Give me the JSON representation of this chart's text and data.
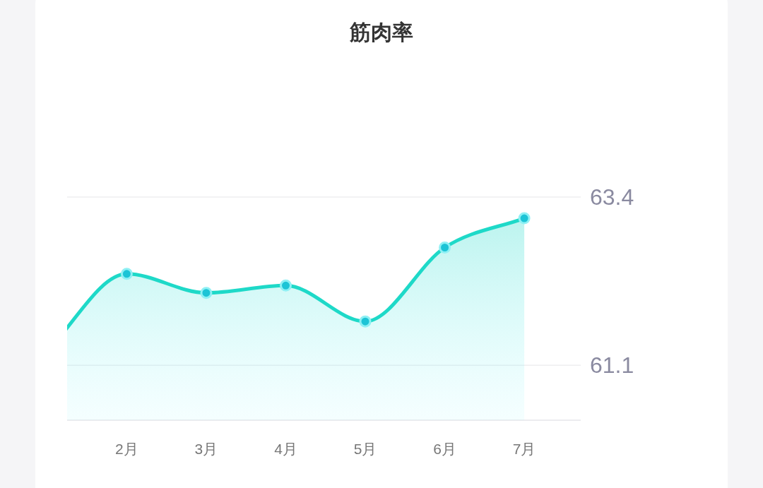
{
  "chart_data": {
    "type": "area",
    "title": "筋肉率",
    "categories": [
      null,
      "2月",
      "3月",
      "4月",
      "5月",
      "6月",
      "7月"
    ],
    "series": [
      {
        "color": "#1ed9c8",
        "values": [
          61.3,
          62.35,
          62.09,
          62.19,
          61.7,
          62.71,
          63.11
        ]
      }
    ],
    "ylim": [
      60.35,
      63.4
    ],
    "yticks": [
      61.1,
      63.4
    ],
    "grid": "y",
    "marker": "circle",
    "line_style": "solid"
  }
}
